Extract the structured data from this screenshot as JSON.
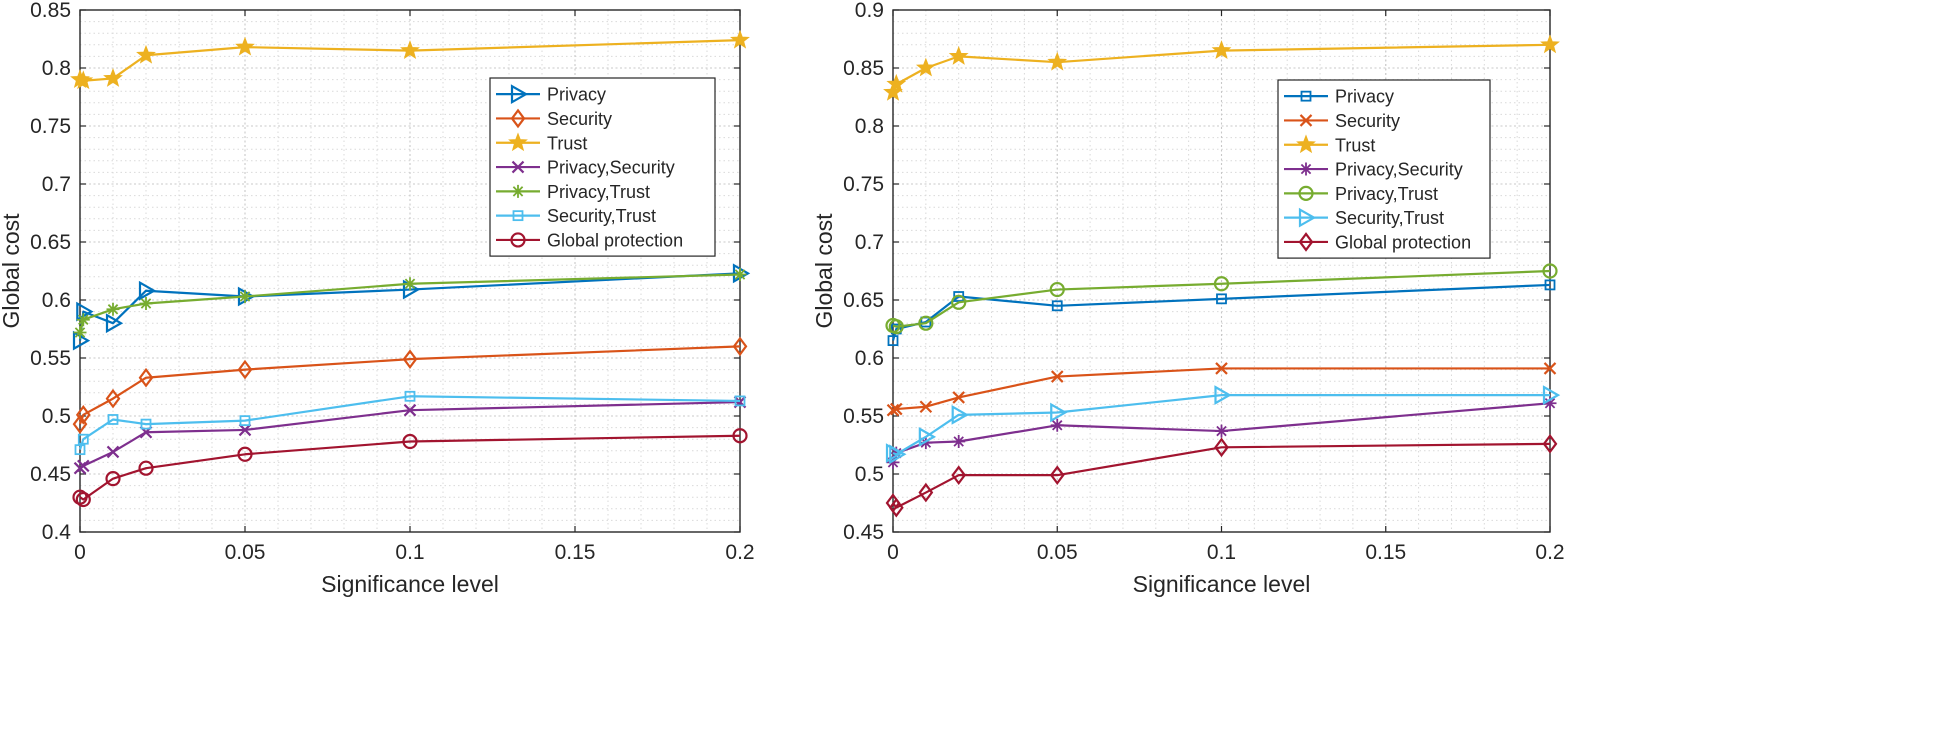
{
  "chart_data": [
    {
      "type": "line",
      "title": "",
      "xlabel": "Significance level",
      "ylabel": "Global cost",
      "xlim": [
        0,
        0.2
      ],
      "ylim": [
        0.4,
        0.85
      ],
      "xticks": [
        0,
        0.05,
        0.1,
        0.15,
        0.2
      ],
      "xtick_labels": [
        "0",
        "0.05",
        "0.1",
        "0.15",
        "0.2"
      ],
      "yticks": [
        0.4,
        0.45,
        0.5,
        0.55,
        0.6,
        0.65,
        0.7,
        0.75,
        0.8,
        0.85
      ],
      "ytick_labels": [
        "0.4",
        "0.45",
        "0.5",
        "0.55",
        "0.6",
        "0.65",
        "0.7",
        "0.75",
        "0.8",
        "0.85"
      ],
      "grid": true,
      "minor_grid": true,
      "legend_position": "top-right",
      "x": [
        0,
        0.001,
        0.01,
        0.02,
        0.05,
        0.1,
        0.2
      ],
      "series": [
        {
          "name": "Privacy",
          "marker": "triangle-right",
          "color": "#0072BD",
          "values": [
            0.565,
            0.59,
            0.58,
            0.608,
            0.603,
            0.609,
            0.623
          ]
        },
        {
          "name": "Security",
          "marker": "diamond",
          "color": "#D95319",
          "values": [
            0.493,
            0.501,
            0.515,
            0.533,
            0.54,
            0.549,
            0.56
          ]
        },
        {
          "name": "Trust",
          "marker": "star",
          "color": "#EDB120",
          "values": [
            0.79,
            0.789,
            0.791,
            0.811,
            0.818,
            0.815,
            0.824
          ]
        },
        {
          "name": "Privacy,Security",
          "marker": "x",
          "color": "#7E2F8E",
          "values": [
            0.455,
            0.457,
            0.469,
            0.486,
            0.488,
            0.505,
            0.512
          ]
        },
        {
          "name": "Privacy,Trust",
          "marker": "asterisk",
          "color": "#77AC30",
          "values": [
            0.572,
            0.583,
            0.592,
            0.597,
            0.603,
            0.614,
            0.622
          ]
        },
        {
          "name": "Security,Trust",
          "marker": "square",
          "color": "#4DBEEE",
          "values": [
            0.471,
            0.48,
            0.497,
            0.493,
            0.496,
            0.517,
            0.513
          ]
        },
        {
          "name": "Global protection",
          "marker": "circle",
          "color": "#A2142F",
          "values": [
            0.43,
            0.428,
            0.446,
            0.455,
            0.467,
            0.478,
            0.483
          ]
        }
      ]
    },
    {
      "type": "line",
      "title": "",
      "xlabel": "Significance level",
      "ylabel": "Global cost",
      "xlim": [
        0,
        0.2
      ],
      "ylim": [
        0.45,
        0.9
      ],
      "xticks": [
        0,
        0.05,
        0.1,
        0.15,
        0.2
      ],
      "xtick_labels": [
        "0",
        "0.05",
        "0.1",
        "0.15",
        "0.2"
      ],
      "yticks": [
        0.45,
        0.5,
        0.55,
        0.6,
        0.65,
        0.7,
        0.75,
        0.8,
        0.85,
        0.9
      ],
      "ytick_labels": [
        "0.45",
        "0.5",
        "0.55",
        "0.6",
        "0.65",
        "0.7",
        "0.75",
        "0.8",
        "0.85",
        "0.9"
      ],
      "grid": true,
      "minor_grid": true,
      "legend_position": "top-right",
      "x": [
        0,
        0.001,
        0.01,
        0.02,
        0.05,
        0.1,
        0.2
      ],
      "series": [
        {
          "name": "Privacy",
          "marker": "square",
          "color": "#0072BD",
          "values": [
            0.615,
            0.625,
            0.631,
            0.653,
            0.645,
            0.651,
            0.663
          ]
        },
        {
          "name": "Security",
          "marker": "x",
          "color": "#D95319",
          "values": [
            0.555,
            0.556,
            0.558,
            0.566,
            0.584,
            0.591,
            0.591
          ]
        },
        {
          "name": "Trust",
          "marker": "star",
          "color": "#EDB120",
          "values": [
            0.829,
            0.836,
            0.85,
            0.86,
            0.855,
            0.865,
            0.87
          ]
        },
        {
          "name": "Privacy,Security",
          "marker": "asterisk",
          "color": "#7E2F8E",
          "values": [
            0.51,
            0.518,
            0.527,
            0.528,
            0.542,
            0.537,
            0.561
          ]
        },
        {
          "name": "Privacy,Trust",
          "marker": "circle",
          "color": "#77AC30",
          "values": [
            0.628,
            0.627,
            0.63,
            0.648,
            0.659,
            0.664,
            0.675
          ]
        },
        {
          "name": "Security,Trust",
          "marker": "triangle-right",
          "color": "#4DBEEE",
          "values": [
            0.518,
            0.517,
            0.532,
            0.551,
            0.553,
            0.568,
            0.568
          ]
        },
        {
          "name": "Global protection",
          "marker": "diamond",
          "color": "#A2142F",
          "values": [
            0.475,
            0.471,
            0.484,
            0.499,
            0.499,
            0.523,
            0.526
          ]
        }
      ]
    }
  ]
}
